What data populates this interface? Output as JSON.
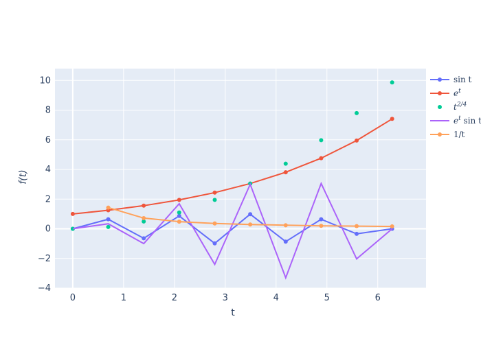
{
  "chart_data": {
    "type": "line",
    "xlabel": "t",
    "ylabel": "f(t)",
    "x": [
      0,
      0.698,
      1.396,
      2.094,
      2.793,
      3.491,
      4.189,
      4.887,
      5.585,
      6.283
    ],
    "xlim": [
      -0.35,
      6.95
    ],
    "ylim": [
      -4,
      10.8
    ],
    "xticks": [
      0,
      1,
      2,
      3,
      4,
      5,
      6
    ],
    "yticks": [
      -4,
      -2,
      0,
      2,
      4,
      6,
      8,
      10
    ],
    "grid": true,
    "legend_position": "right",
    "series": [
      {
        "name": "sin t",
        "mode": "lines+markers",
        "color": "#636efa",
        "values": [
          0,
          0.643,
          -0.643,
          0.866,
          -0.985,
          0.985,
          -0.866,
          0.643,
          -0.342,
          0.0
        ]
      },
      {
        "name": "e^t",
        "mode": "lines+markers",
        "color": "#ef553b",
        "values": [
          1.0,
          1.25,
          1.56,
          1.95,
          2.44,
          3.05,
          3.81,
          4.76,
          5.95,
          7.41
        ]
      },
      {
        "name": "t^2/4",
        "mode": "markers",
        "color": "#00cc96",
        "values": [
          0.0,
          0.12,
          0.49,
          1.1,
          1.95,
          3.05,
          4.39,
          5.97,
          7.8,
          9.87
        ]
      },
      {
        "name": "e^t sin t",
        "mode": "lines",
        "color": "#ab63fa",
        "values": [
          0.0,
          0.34,
          -1.0,
          1.69,
          -2.4,
          3.0,
          -3.3,
          3.06,
          -2.03,
          0.0
        ]
      },
      {
        "name": "1/t",
        "mode": "lines+markers",
        "color": "#ffa15a",
        "values": [
          null,
          1.43,
          0.72,
          0.48,
          0.36,
          0.29,
          0.24,
          0.2,
          0.18,
          0.16
        ]
      }
    ]
  }
}
